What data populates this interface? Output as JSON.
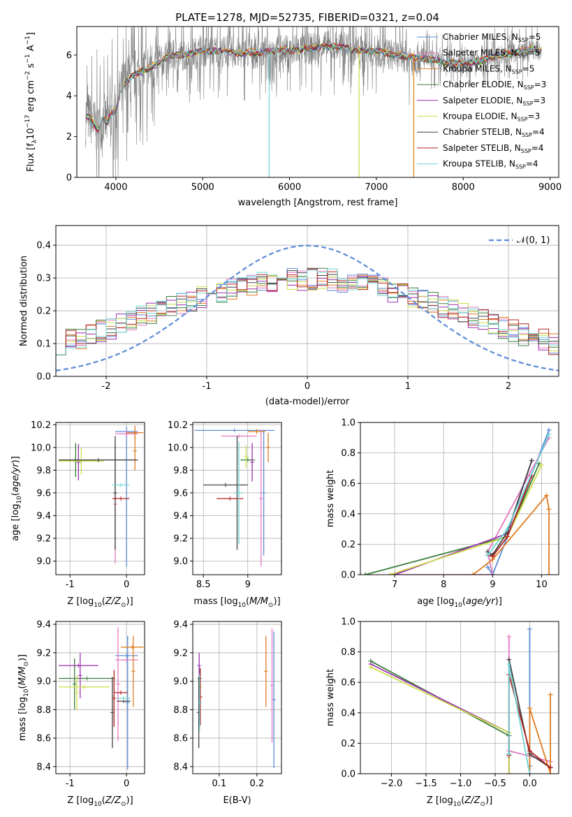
{
  "figure_title": "PLATE=1278, MJD=52735, FIBERID=0321, z=0.04",
  "colors": {
    "grid": "#b0b0b0",
    "spectrum": "#808080",
    "model_line": "#5b8bd6",
    "Chabrier MILES": "#5b8bd6",
    "Salpeter MILES": "#e377c2",
    "Kroupa MILES": "#e07b20",
    "Chabrier ELODIE": "#3b7d3b",
    "Salpeter ELODIE": "#9b2fae",
    "Kroupa ELODIE": "#cdde4a",
    "Chabrier STELIB": "#404040",
    "Salpeter STELIB": "#b22222",
    "Kroupa STELIB": "#6fd5d5"
  },
  "chart_data": [
    {
      "id": "spectrum",
      "type": "line",
      "title": "PLATE=1278, MJD=52735, FIBERID=0321, z=0.04",
      "xlabel": "wavelength [Angstrom, rest frame]",
      "ylabel_parts": [
        "Flux [f",
        "λ",
        "10",
        "−17",
        " erg cm",
        "−2",
        " s",
        "−1",
        " A",
        "−1",
        "]"
      ],
      "xlim": [
        3550,
        9100
      ],
      "ylim": [
        0,
        7.4
      ],
      "xticks": [
        4000,
        5000,
        6000,
        7000,
        8000,
        9000
      ],
      "yticks": [
        0,
        2,
        4,
        6
      ],
      "grid": false,
      "legend_position": "upper-right",
      "data_sample": {
        "x": [
          3650,
          3700,
          3750,
          3800,
          3850,
          3900,
          3950,
          4000,
          4050,
          4100,
          4200,
          4300,
          4400,
          4500,
          4600,
          4700,
          4800,
          4900,
          5000,
          5200,
          5400,
          5600,
          5800,
          6000,
          6200,
          6400,
          6600,
          6800,
          7000,
          7200,
          7400,
          7600,
          7800,
          8000,
          8200,
          8400,
          8600,
          8800,
          8900
        ],
        "y": [
          3.1,
          2.9,
          2.6,
          2.3,
          2.9,
          2.7,
          3.2,
          3.3,
          4.2,
          4.6,
          5.0,
          5.2,
          5.4,
          5.6,
          5.9,
          6.0,
          6.0,
          6.1,
          6.2,
          6.2,
          6.1,
          6.1,
          6.2,
          6.2,
          6.3,
          6.4,
          6.4,
          6.2,
          6.2,
          6.0,
          5.9,
          5.8,
          5.6,
          5.6,
          5.7,
          6.0,
          6.1,
          6.3,
          6.2
        ]
      },
      "legend": [
        {
          "label": "Chabrier MILES, N",
          "sub": "SSP",
          "suffix": "=5"
        },
        {
          "label": "Salpeter MILES, N",
          "sub": "SSP",
          "suffix": "=5"
        },
        {
          "label": "Kroupa MILES, N",
          "sub": "SSP",
          "suffix": "=5"
        },
        {
          "label": "Chabrier ELODIE, N",
          "sub": "SSP",
          "suffix": "=3"
        },
        {
          "label": "Salpeter ELODIE, N",
          "sub": "SSP",
          "suffix": "=3"
        },
        {
          "label": "Kroupa ELODIE, N",
          "sub": "SSP",
          "suffix": "=3"
        },
        {
          "label": "Chabrier STELIB, N",
          "sub": "SSP",
          "suffix": "=4"
        },
        {
          "label": "Salpeter STELIB, N",
          "sub": "SSP",
          "suffix": "=4"
        },
        {
          "label": "Kroupa STELIB, N",
          "sub": "SSP",
          "suffix": "=4"
        }
      ]
    },
    {
      "id": "residuals",
      "type": "histogram",
      "xlabel": "(data-model)/error",
      "ylabel": "Normed distribution",
      "xlim": [
        -2.5,
        2.5
      ],
      "ylim": [
        0,
        0.46
      ],
      "xticks": [
        -2,
        -1,
        0,
        1,
        2
      ],
      "yticks": [
        0.0,
        0.1,
        0.2,
        0.3,
        0.4
      ],
      "ytick_labels": [
        "0.0",
        "0.1",
        "0.2",
        "0.3",
        "0.4"
      ],
      "grid": true,
      "legend": "𝒩(0, 1)",
      "legend_position": "upper-right"
    },
    {
      "id": "age_vs_Z",
      "type": "errorbar",
      "xlabel": "Z [log10(Z/Z⊙)]",
      "ylabel": "age  [log10(age/yr)]",
      "xlim": [
        -1.25,
        0.32
      ],
      "ylim": [
        8.88,
        10.22
      ],
      "xticks": [
        -1,
        0
      ],
      "yticks": [
        9.0,
        9.2,
        9.4,
        9.6,
        9.8,
        10.0,
        10.2
      ],
      "ytick_labels": [
        "9.0",
        "9.2",
        "9.4",
        "9.6",
        "9.8",
        "10.0",
        "10.2"
      ],
      "grid": true,
      "points": [
        {
          "series": "Chabrier MILES",
          "x": 0.0,
          "xerr": 0.2,
          "y": 10.14,
          "yerr": 0.04
        },
        {
          "series": "Chabrier MILES",
          "x": 0.0,
          "xerr": 0.0,
          "y": 9.55,
          "yerr": 0.6
        },
        {
          "series": "Salpeter MILES",
          "x": -0.2,
          "xerr": 0.0,
          "y": 9.5,
          "yerr": 0.52
        },
        {
          "series": "Salpeter MILES",
          "x": 0.0,
          "xerr": 0.2,
          "y": 10.12,
          "yerr": 0.03
        },
        {
          "series": "Kroupa MILES",
          "x": 0.15,
          "xerr": 0.15,
          "y": 10.13,
          "yerr": 0.06
        },
        {
          "series": "Kroupa MILES",
          "x": 0.15,
          "xerr": 0.0,
          "y": 9.97,
          "yerr": 0.17
        },
        {
          "series": "Chabrier ELODIE",
          "x": -0.9,
          "xerr": 0.3,
          "y": 9.89,
          "yerr": 0.15
        },
        {
          "series": "Salpeter ELODIE",
          "x": -0.85,
          "xerr": 0.0,
          "y": 9.87,
          "yerr": 0.16
        },
        {
          "series": "Kroupa ELODIE",
          "x": -0.8,
          "xerr": 0.4,
          "y": 9.88,
          "yerr": 0.12
        },
        {
          "series": "Chabrier STELIB",
          "x": -0.5,
          "xerr": 0.7,
          "y": 9.89,
          "yerr": 0.0
        },
        {
          "series": "Chabrier STELIB",
          "x": -0.2,
          "xerr": 0.0,
          "y": 9.6,
          "yerr": 0.5
        },
        {
          "series": "Salpeter STELIB",
          "x": -0.1,
          "xerr": 0.15,
          "y": 9.55,
          "yerr": 0.0
        },
        {
          "series": "Kroupa STELIB",
          "x": -0.1,
          "xerr": 0.15,
          "y": 9.67,
          "yerr": 0.0
        }
      ]
    },
    {
      "id": "age_vs_mass",
      "type": "errorbar",
      "xlabel": "mass [log10(M/M⊙)]",
      "ylabel": "",
      "xlim": [
        8.38,
        9.38
      ],
      "ylim": [
        8.88,
        10.22
      ],
      "xticks": [
        8.5,
        9.0
      ],
      "yticks": [
        9.0,
        9.2,
        9.4,
        9.6,
        9.8,
        10.0,
        10.2
      ],
      "ytick_labels": [
        "9.0",
        "9.2",
        "9.4",
        "9.6",
        "9.8",
        "10.0",
        "10.2"
      ],
      "grid": true,
      "points": [
        {
          "series": "Chabrier MILES",
          "x": 8.85,
          "xerr": 0.45,
          "y": 10.15,
          "yerr": 0.0
        },
        {
          "series": "Chabrier MILES",
          "x": 9.18,
          "xerr": 0.0,
          "y": 9.6,
          "yerr": 0.55
        },
        {
          "series": "Salpeter MILES",
          "x": 9.15,
          "xerr": 0.0,
          "y": 9.55,
          "yerr": 0.6
        },
        {
          "series": "Salpeter MILES",
          "x": 8.9,
          "xerr": 0.2,
          "y": 10.1,
          "yerr": 0.0
        },
        {
          "series": "Kroupa MILES",
          "x": 9.23,
          "xerr": 0.0,
          "y": 10.0,
          "yerr": 0.13
        },
        {
          "series": "Kroupa MILES",
          "x": 9.1,
          "xerr": 0.1,
          "y": 10.14,
          "yerr": 0.02
        },
        {
          "series": "Chabrier ELODIE",
          "x": 9.0,
          "xerr": 0.08,
          "y": 9.89,
          "yerr": 0.0
        },
        {
          "series": "Salpeter ELODIE",
          "x": 9.05,
          "xerr": 0.0,
          "y": 9.87,
          "yerr": 0.17
        },
        {
          "series": "Kroupa ELODIE",
          "x": 8.98,
          "xerr": 0.0,
          "y": 9.92,
          "yerr": 0.1
        },
        {
          "series": "Chabrier STELIB",
          "x": 8.88,
          "xerr": 0.0,
          "y": 9.6,
          "yerr": 0.5
        },
        {
          "series": "Chabrier STELIB",
          "x": 8.75,
          "xerr": 0.25,
          "y": 9.67,
          "yerr": 0.0
        },
        {
          "series": "Salpeter STELIB",
          "x": 8.8,
          "xerr": 0.15,
          "y": 9.55,
          "yerr": 0.0
        },
        {
          "series": "Kroupa STELIB",
          "x": 8.9,
          "xerr": 0.05,
          "y": 9.6,
          "yerr": 0.45
        }
      ]
    },
    {
      "id": "mass_weight_vs_age",
      "type": "line",
      "xlabel": "age  [log10(age/yr)]",
      "ylabel": "mass weight",
      "xlim": [
        6.3,
        10.35
      ],
      "ylim": [
        0,
        1.0
      ],
      "xticks": [
        7,
        8,
        9,
        10
      ],
      "yticks": [
        0.0,
        0.2,
        0.4,
        0.6,
        0.8,
        1.0
      ],
      "ytick_labels": [
        "0.0",
        "0.2",
        "0.4",
        "0.6",
        "0.8",
        "1.0"
      ],
      "grid": true,
      "series": [
        {
          "name": "Chabrier MILES",
          "x": [
            9.0,
            8.9,
            9.0,
            10.15
          ],
          "y": [
            0.0,
            0.05,
            0.0,
            0.95
          ]
        },
        {
          "name": "Salpeter MILES",
          "x": [
            6.9,
            9.0,
            8.9,
            10.15
          ],
          "y": [
            0.0,
            0.0,
            0.15,
            0.9
          ]
        },
        {
          "name": "Kroupa MILES",
          "x": [
            8.6,
            9.0,
            10.1,
            10.15,
            10.15
          ],
          "y": [
            0.0,
            0.1,
            0.52,
            0.43,
            0.0
          ]
        },
        {
          "name": "Chabrier ELODIE",
          "x": [
            6.4,
            9.3,
            9.95
          ],
          "y": [
            0.0,
            0.25,
            0.73
          ]
        },
        {
          "name": "Salpeter ELODIE",
          "x": [
            7.0,
            9.3,
            9.8
          ],
          "y": [
            0.0,
            0.27,
            0.75
          ]
        },
        {
          "name": "Kroupa ELODIE",
          "x": [
            6.9,
            9.3,
            10.0
          ],
          "y": [
            0.0,
            0.25,
            0.72
          ]
        },
        {
          "name": "Chabrier STELIB",
          "x": [
            8.9,
            9.0,
            9.3,
            9.8
          ],
          "y": [
            0.15,
            0.13,
            0.28,
            0.75
          ]
        },
        {
          "name": "Salpeter STELIB",
          "x": [
            8.9,
            9.0,
            9.3,
            9.8
          ],
          "y": [
            0.13,
            0.12,
            0.25,
            0.65
          ]
        },
        {
          "name": "Kroupa STELIB",
          "x": [
            8.9,
            9.3,
            10.15
          ],
          "y": [
            0.13,
            0.3,
            0.92
          ]
        }
      ]
    },
    {
      "id": "mass_vs_Z",
      "type": "errorbar",
      "xlabel": "Z [log10(Z/Z⊙)]",
      "ylabel": "mass [log10(M/M⊙)]",
      "xlim": [
        -1.25,
        0.32
      ],
      "ylim": [
        8.35,
        9.42
      ],
      "xticks": [
        -1,
        0
      ],
      "yticks": [
        8.4,
        8.6,
        8.8,
        9.0,
        9.2,
        9.4
      ],
      "ytick_labels": [
        "8.4",
        "8.6",
        "8.8",
        "9.0",
        "9.2",
        "9.4"
      ],
      "grid": true,
      "points": [
        {
          "series": "Chabrier MILES",
          "x": 0.0,
          "xerr": 0.2,
          "y": 9.18,
          "yerr": 0.0
        },
        {
          "series": "Chabrier MILES",
          "x": 0.02,
          "xerr": 0.0,
          "y": 8.85,
          "yerr": 0.47
        },
        {
          "series": "Salpeter MILES",
          "x": -0.15,
          "xerr": 0.0,
          "y": 8.98,
          "yerr": 0.4
        },
        {
          "series": "Salpeter MILES",
          "x": 0.0,
          "xerr": 0.2,
          "y": 9.15,
          "yerr": 0.0
        },
        {
          "series": "Kroupa MILES",
          "x": 0.1,
          "xerr": 0.2,
          "y": 9.24,
          "yerr": 0.0
        },
        {
          "series": "Kroupa MILES",
          "x": 0.12,
          "xerr": 0.0,
          "y": 9.07,
          "yerr": 0.25
        },
        {
          "series": "Chabrier ELODIE",
          "x": -0.7,
          "xerr": 0.5,
          "y": 9.02,
          "yerr": 0.0
        },
        {
          "series": "Chabrier ELODIE",
          "x": -0.92,
          "xerr": 0.0,
          "y": 8.98,
          "yerr": 0.18
        },
        {
          "series": "Salpeter ELODIE",
          "x": -0.85,
          "xerr": 0.35,
          "y": 9.11,
          "yerr": 0.0
        },
        {
          "series": "Salpeter ELODIE",
          "x": -0.82,
          "xerr": 0.0,
          "y": 9.04,
          "yerr": 0.16
        },
        {
          "series": "Kroupa ELODIE",
          "x": -0.75,
          "xerr": 0.45,
          "y": 8.96,
          "yerr": 0.0
        },
        {
          "series": "Kroupa ELODIE",
          "x": -0.88,
          "xerr": 0.0,
          "y": 8.92,
          "yerr": 0.12
        },
        {
          "series": "Chabrier STELIB",
          "x": -0.25,
          "xerr": 0.0,
          "y": 8.78,
          "yerr": 0.25
        },
        {
          "series": "Chabrier STELIB",
          "x": -0.05,
          "xerr": 0.12,
          "y": 8.86,
          "yerr": 0.0
        },
        {
          "series": "Salpeter STELIB",
          "x": -0.1,
          "xerr": 0.12,
          "y": 8.92,
          "yerr": 0.0
        },
        {
          "series": "Salpeter STELIB",
          "x": -0.22,
          "xerr": 0.0,
          "y": 8.88,
          "yerr": 0.2
        },
        {
          "series": "Kroupa STELIB",
          "x": -0.05,
          "xerr": 0.12,
          "y": 8.88,
          "yerr": 0.0
        }
      ]
    },
    {
      "id": "mass_vs_ebv",
      "type": "errorbar",
      "xlabel": "E(B-V)",
      "ylabel": "",
      "xlim": [
        0.03,
        0.265
      ],
      "ylim": [
        8.35,
        9.42
      ],
      "xticks": [
        0.1,
        0.2
      ],
      "yticks": [
        8.4,
        8.6,
        8.8,
        9.0,
        9.2,
        9.4
      ],
      "ytick_labels": [
        "8.4",
        "8.6",
        "8.8",
        "9.0",
        "9.2",
        "9.4"
      ],
      "grid": true,
      "points": [
        {
          "series": "Chabrier MILES",
          "x": 0.245,
          "xerr": 0.0,
          "y": 8.87,
          "yerr": 0.48
        },
        {
          "series": "Salpeter MILES",
          "x": 0.24,
          "xerr": 0.0,
          "y": 8.97,
          "yerr": 0.4
        },
        {
          "series": "Kroupa MILES",
          "x": 0.224,
          "xerr": 0.0,
          "y": 9.07,
          "yerr": 0.25
        },
        {
          "series": "Chabrier ELODIE",
          "x": 0.048,
          "xerr": 0.0,
          "y": 9.02,
          "yerr": 0.08
        },
        {
          "series": "Salpeter ELODIE",
          "x": 0.047,
          "xerr": 0.0,
          "y": 9.11,
          "yerr": 0.09
        },
        {
          "series": "Kroupa ELODIE",
          "x": 0.049,
          "xerr": 0.0,
          "y": 8.96,
          "yerr": 0.06
        },
        {
          "series": "Chabrier STELIB",
          "x": 0.046,
          "xerr": 0.0,
          "y": 8.78,
          "yerr": 0.25
        },
        {
          "series": "Salpeter STELIB",
          "x": 0.05,
          "xerr": 0.0,
          "y": 8.89,
          "yerr": 0.2
        },
        {
          "series": "Kroupa STELIB",
          "x": 0.048,
          "xerr": 0.0,
          "y": 8.85,
          "yerr": 0.2
        }
      ]
    },
    {
      "id": "mass_weight_vs_Z",
      "type": "line",
      "xlabel": "Z [log10(Z/Z⊙)]",
      "ylabel": "mass weight",
      "xlim": [
        -2.45,
        0.42
      ],
      "ylim": [
        0,
        1.0
      ],
      "xticks": [
        -2.0,
        -1.5,
        -1.0,
        -0.5,
        0.0
      ],
      "xtick_labels": [
        "−2.0",
        "−1.5",
        "−1.0",
        "−0.5",
        "0.0"
      ],
      "yticks": [
        0.0,
        0.2,
        0.4,
        0.6,
        0.8,
        1.0
      ],
      "ytick_labels": [
        "0.0",
        "0.2",
        "0.4",
        "0.6",
        "0.8",
        "1.0"
      ],
      "grid": true,
      "series": [
        {
          "name": "Chabrier MILES",
          "x": [
            0.0,
            0.0,
            0.0
          ],
          "y": [
            0.0,
            0.95,
            0.05
          ]
        },
        {
          "name": "Salpeter MILES",
          "x": [
            -0.3,
            -0.3,
            -0.3,
            0.3
          ],
          "y": [
            0.0,
            0.9,
            0.15,
            0.08
          ]
        },
        {
          "name": "Kroupa MILES",
          "x": [
            0.0,
            0.0,
            0.3,
            0.3
          ],
          "y": [
            0.0,
            0.43,
            0.0,
            0.52
          ]
        },
        {
          "name": "Chabrier ELODIE",
          "x": [
            -2.3,
            -0.3,
            -0.3
          ],
          "y": [
            0.74,
            0.25,
            0.0
          ]
        },
        {
          "name": "Salpeter ELODIE",
          "x": [
            -2.3,
            -0.3,
            -0.3
          ],
          "y": [
            0.72,
            0.27,
            0.0
          ]
        },
        {
          "name": "Kroupa ELODIE",
          "x": [
            -2.3,
            -0.3,
            -0.3
          ],
          "y": [
            0.7,
            0.27,
            0.0
          ]
        },
        {
          "name": "Chabrier STELIB",
          "x": [
            -0.3,
            -0.3,
            0.0,
            0.3
          ],
          "y": [
            0.13,
            0.75,
            0.13,
            0.04
          ]
        },
        {
          "name": "Salpeter STELIB",
          "x": [
            -0.3,
            -0.3,
            0.0,
            0.3
          ],
          "y": [
            0.12,
            0.65,
            0.15,
            0.04
          ]
        },
        {
          "name": "Kroupa STELIB",
          "x": [
            -0.3,
            -0.3,
            0.0
          ],
          "y": [
            0.13,
            0.72,
            0.0
          ]
        }
      ]
    }
  ]
}
